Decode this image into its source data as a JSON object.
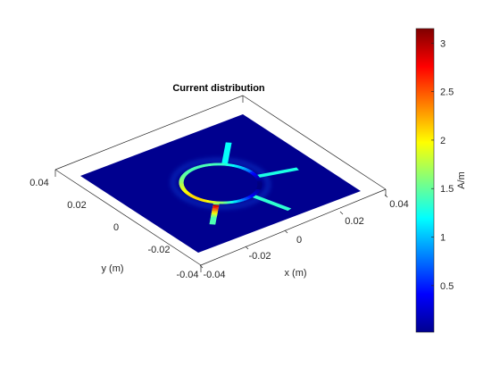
{
  "chart_data": {
    "type": "heatmap",
    "title": "Current distribution",
    "xlabel": "x (m)",
    "ylabel": "y (m)",
    "colorbar_label": "A/m",
    "x_ticks": [
      "0.04",
      "0.02",
      "0",
      "-0.02",
      "-0.04"
    ],
    "y_ticks": [
      "0.04",
      "0.02",
      "0",
      "-0.02",
      "-0.04"
    ],
    "colorbar_ticks": [
      "3",
      "2.5",
      "2",
      "1.5",
      "1",
      "0.5"
    ],
    "colorbar_range": [
      0.02,
      3.15
    ],
    "colormap": "jet",
    "background_color": "#00008f",
    "xlim": [
      -0.04,
      0.04
    ],
    "ylim": [
      -0.04,
      0.04
    ],
    "ring_outer_radius": 0.0165,
    "ring_inner_radius": 0.0148,
    "feed_lines": [
      {
        "name": "arm-top",
        "x0": 0.0,
        "y0": 0.0165,
        "x1": 0.0,
        "y1": 0.034
      },
      {
        "name": "arm-right",
        "x0": 0.0143,
        "y0": 0.0083,
        "x1": 0.029,
        "y1": 0.017
      },
      {
        "name": "arm-bottom-right",
        "x0": 0.0143,
        "y0": -0.0083,
        "x1": 0.029,
        "y1": -0.017
      },
      {
        "name": "arm-left",
        "x0": -0.0143,
        "y0": 0.0083,
        "x1": -0.029,
        "y1": 0.017
      }
    ],
    "grid": false
  },
  "colors": {
    "axis": "#262626",
    "box": "#262626",
    "background": "#ffffff"
  }
}
